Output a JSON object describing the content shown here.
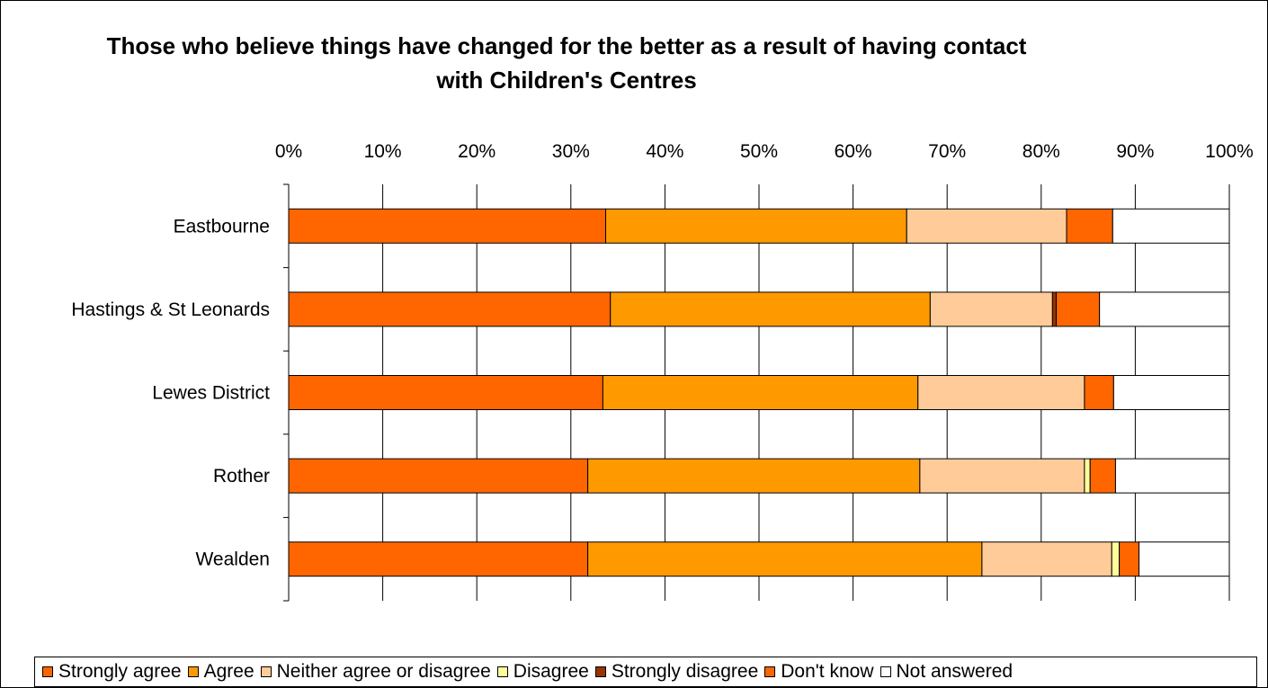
{
  "chart_data": {
    "type": "bar",
    "orientation": "horizontal",
    "stacked": true,
    "percent": true,
    "title": "Those who believe things have changed for the better as a result of having contact with Children's Centres",
    "categories": [
      "Eastbourne",
      "Hastings & St Leonards",
      "Lewes District",
      "Rother",
      "Wealden"
    ],
    "xlim": [
      0,
      100
    ],
    "x_ticks": [
      "0%",
      "10%",
      "20%",
      "30%",
      "40%",
      "50%",
      "60%",
      "70%",
      "80%",
      "90%",
      "100%"
    ],
    "grid": true,
    "legend_position": "bottom",
    "series": [
      {
        "name": "Strongly agree",
        "color": "#FF6600",
        "values": [
          33.7,
          34.2,
          33.4,
          31.8,
          31.8
        ]
      },
      {
        "name": "Agree",
        "color": "#FF9900",
        "values": [
          32.0,
          34.0,
          33.5,
          35.3,
          41.9
        ]
      },
      {
        "name": "Neither agree or disagree",
        "color": "#FFCC99",
        "values": [
          17.0,
          13.0,
          17.7,
          17.5,
          13.8
        ]
      },
      {
        "name": "Disagree",
        "color": "#FFFF99",
        "values": [
          0,
          0,
          0,
          0.6,
          0.8
        ]
      },
      {
        "name": "Strongly disagree",
        "color": "#993300",
        "values": [
          0,
          0.4,
          0,
          0,
          0
        ]
      },
      {
        "name": "Don't know",
        "color": "#FF6600",
        "values": [
          4.9,
          4.6,
          3.1,
          2.7,
          2.1
        ]
      },
      {
        "name": "Not answered",
        "color": "#FFFFFF",
        "values": [
          12.4,
          13.8,
          12.3,
          12.1,
          9.6
        ]
      }
    ]
  }
}
